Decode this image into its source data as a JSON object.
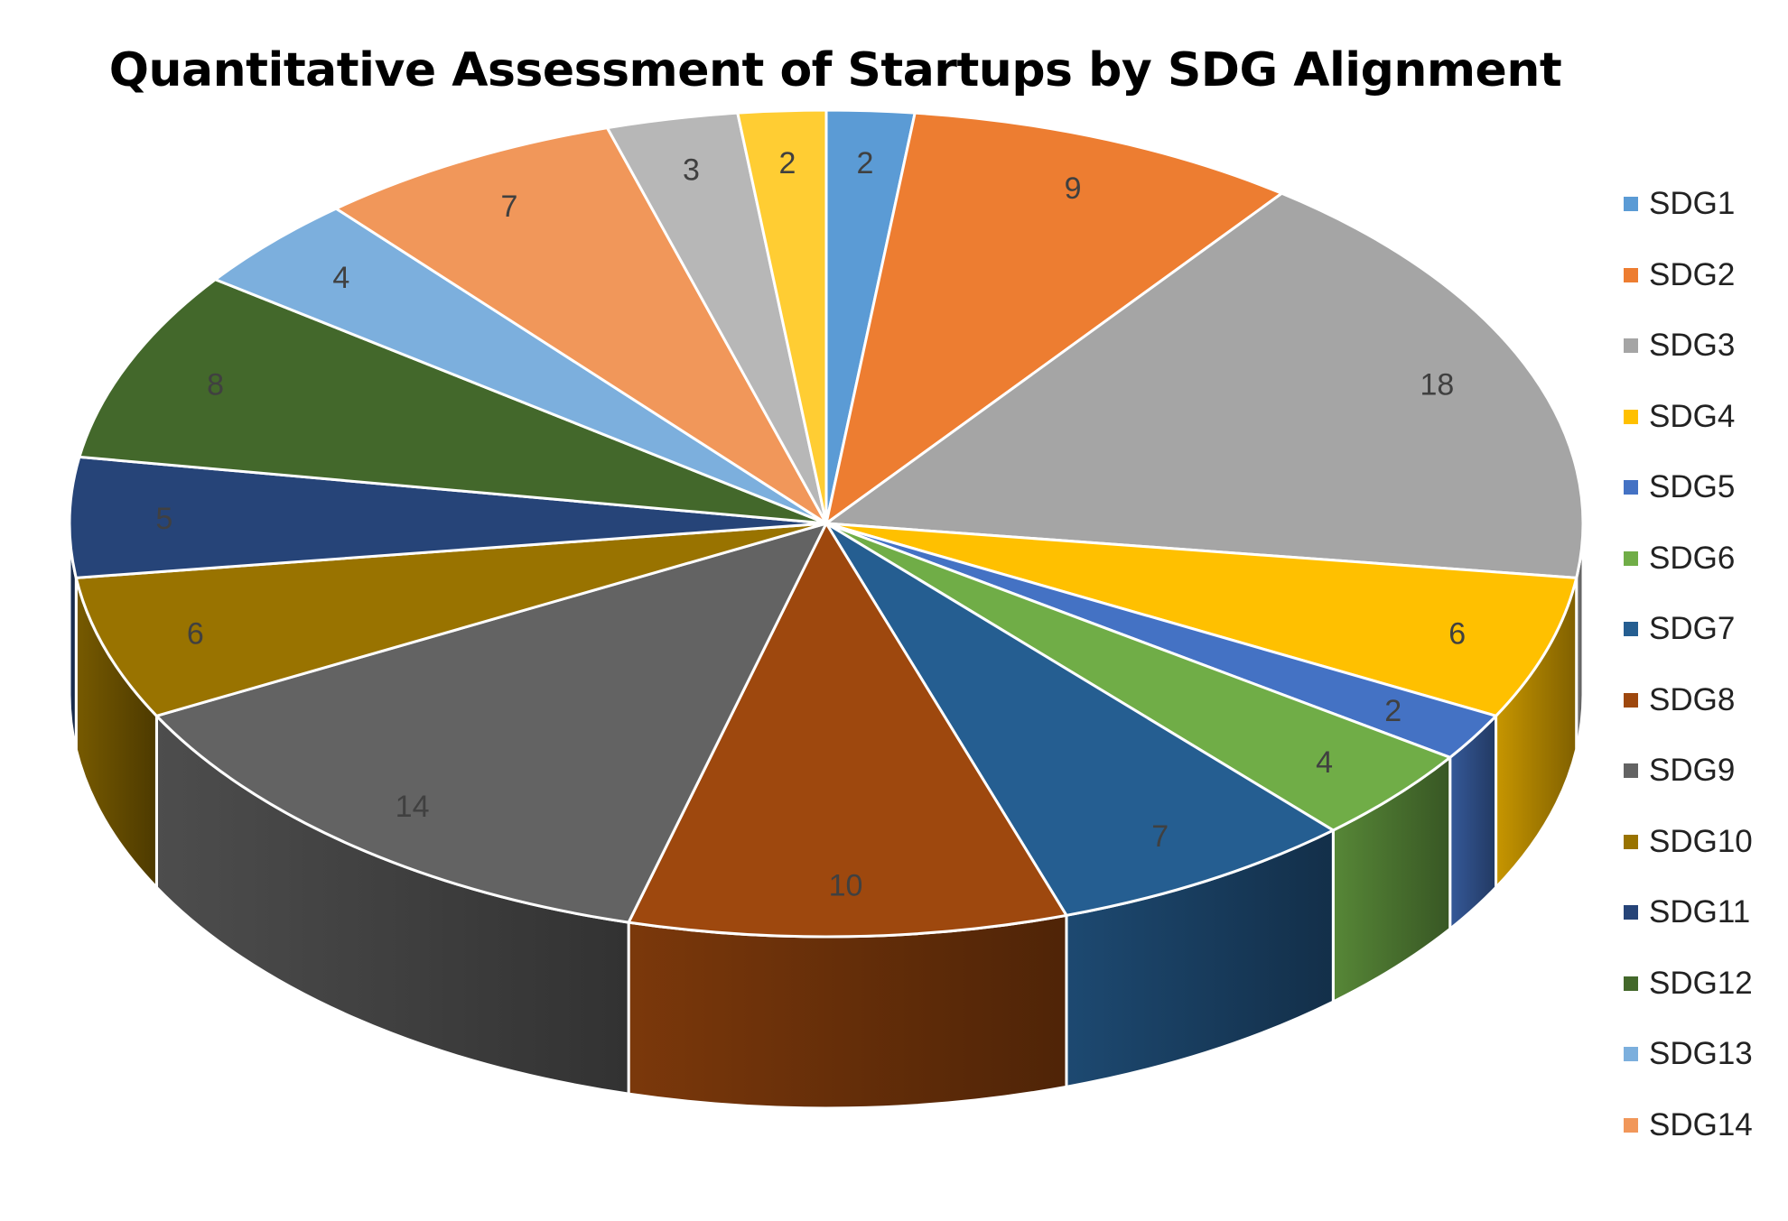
{
  "chart_data": {
    "type": "pie",
    "title": "Quantitative Assessment of Startups by SDG Alignment",
    "legend_position": "right",
    "three_d": true,
    "slices": [
      {
        "name": "SDG1",
        "value": 2,
        "color": "#5B9BD5"
      },
      {
        "name": "SDG2",
        "value": 9,
        "color": "#ED7D31"
      },
      {
        "name": "SDG3",
        "value": 18,
        "color": "#A5A5A5"
      },
      {
        "name": "SDG4",
        "value": 6,
        "color": "#FFC000"
      },
      {
        "name": "SDG5",
        "value": 2,
        "color": "#4472C4"
      },
      {
        "name": "SDG6",
        "value": 4,
        "color": "#70AD47"
      },
      {
        "name": "SDG7",
        "value": 7,
        "color": "#255E91"
      },
      {
        "name": "SDG8",
        "value": 10,
        "color": "#9E480E"
      },
      {
        "name": "SDG9",
        "value": 14,
        "color": "#636363"
      },
      {
        "name": "SDG10",
        "value": 6,
        "color": "#997300"
      },
      {
        "name": "SDG11",
        "value": 5,
        "color": "#264478"
      },
      {
        "name": "SDG12",
        "value": 8,
        "color": "#43682B"
      },
      {
        "name": "SDG13",
        "value": 4,
        "color": "#7CAFDD"
      },
      {
        "name": "SDG14",
        "value": 7,
        "color": "#F1975A"
      },
      {
        "name": "",
        "value": 3,
        "color": "#B7B7B7"
      },
      {
        "name": "",
        "value": 2,
        "color": "#FFCD33"
      }
    ]
  }
}
